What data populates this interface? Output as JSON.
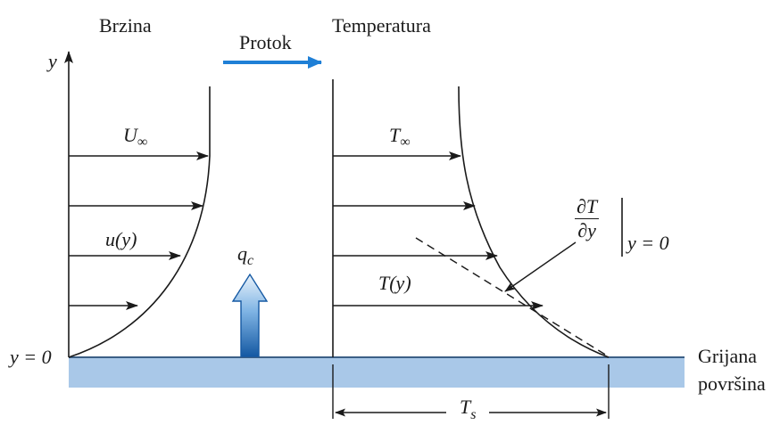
{
  "diagram": {
    "labels": {
      "velocity_title": "Brzina",
      "flow": "Protok",
      "temperature_title": "Temperatura",
      "y_axis": "y",
      "u_inf_sym": "U",
      "u_inf_sub": "∞",
      "u_of_y": "u(y)",
      "heat_flux_sym": "q",
      "heat_flux_sub": "c",
      "t_inf_sym": "T",
      "t_inf_sub": "∞",
      "t_of_y": "T(y)",
      "gradient_num": "∂T",
      "gradient_den": "∂y",
      "gradient_eval": "y = 0",
      "y_zero": "y = 0",
      "surface_line1": "Grijana",
      "surface_line2": "površina",
      "ts_sym": "T",
      "ts_sub": "s"
    },
    "colors": {
      "line": "#1a1a1a",
      "surface": "#a9c8e8",
      "surface_edge": "#6f8fb0",
      "flow_arrow": "#1f7fd6",
      "heat_arrow_top": "#eaf3fb",
      "heat_arrow_bottom": "#1559a3"
    }
  }
}
